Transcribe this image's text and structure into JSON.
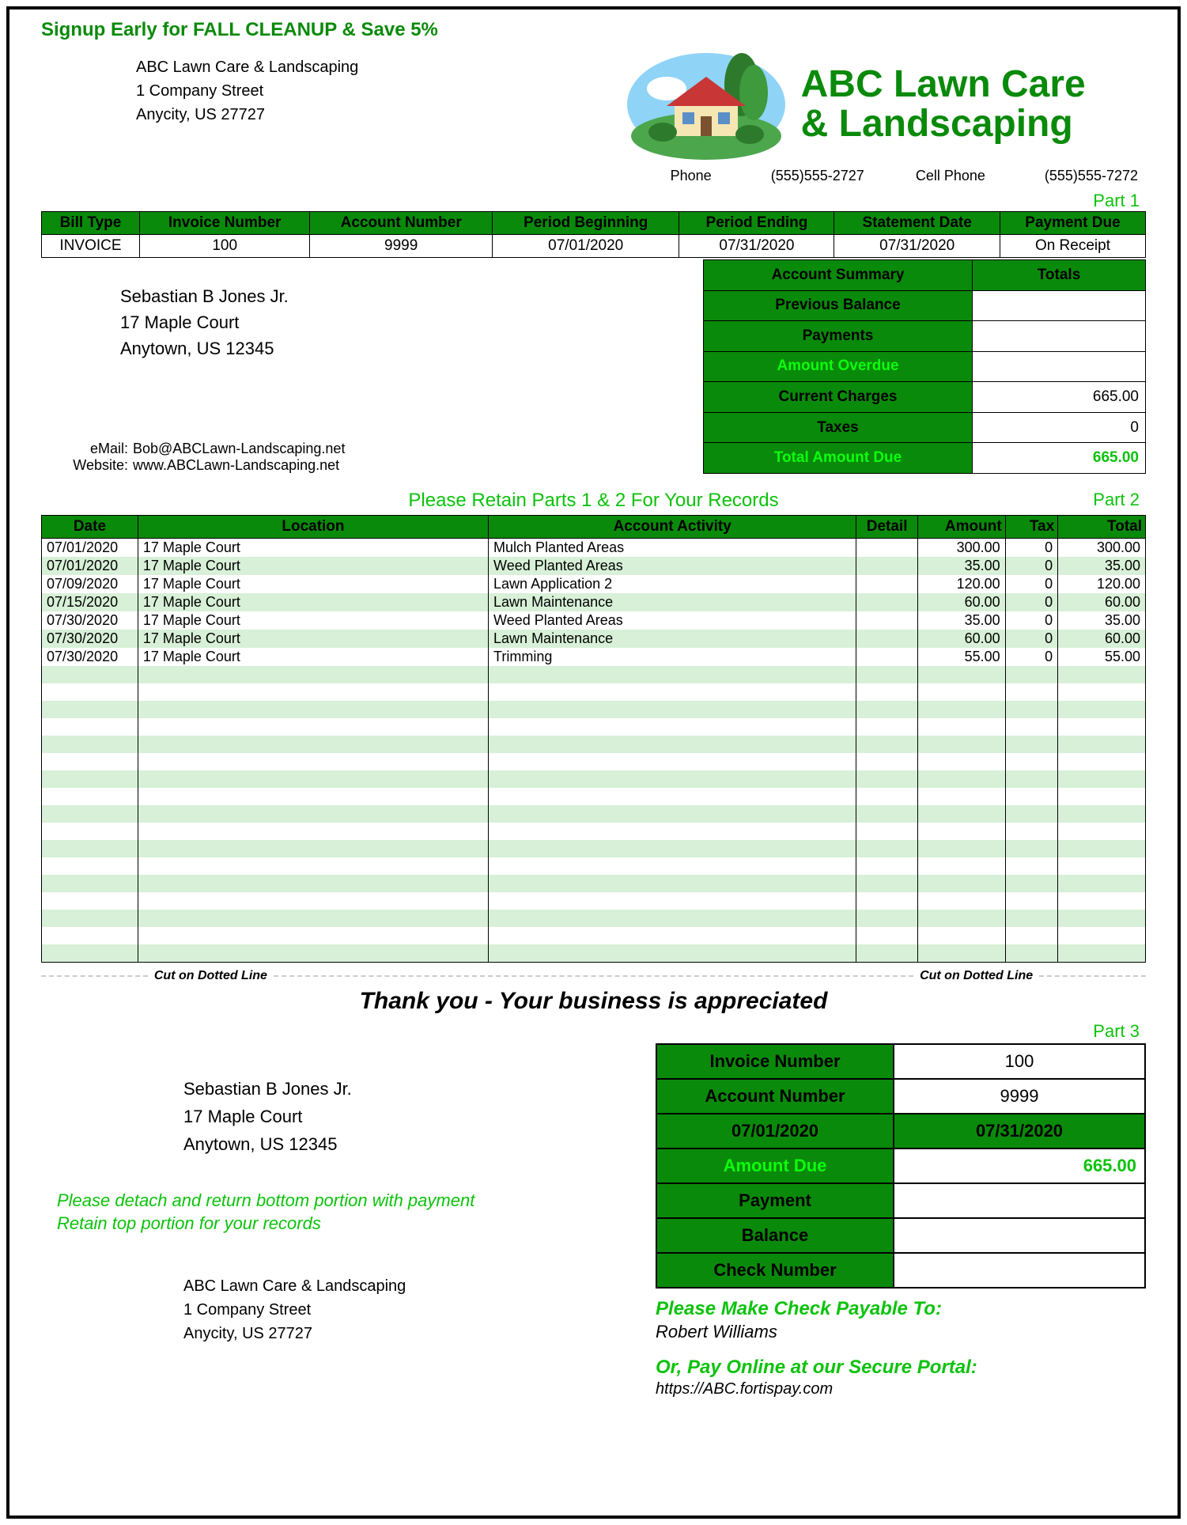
{
  "promo": "Signup Early for FALL CLEANUP & Save 5%",
  "company": {
    "name": "ABC Lawn Care & Landscaping",
    "street": "1 Company Street",
    "citystate": "Anycity, US   27727",
    "logo_line1": "ABC Lawn Care",
    "logo_line2": "& Landscaping"
  },
  "phones": {
    "phone_label": "Phone",
    "phone": "(555)555-2727",
    "cell_label": "Cell Phone",
    "cell": "(555)555-7272"
  },
  "part1_label": "Part 1",
  "info_headers": [
    "Bill Type",
    "Invoice Number",
    "Account Number",
    "Period Beginning",
    "Period Ending",
    "Statement Date",
    "Payment Due"
  ],
  "info_values": [
    "INVOICE",
    "100",
    "9999",
    "07/01/2020",
    "07/31/2020",
    "07/31/2020",
    "On Receipt"
  ],
  "customer": {
    "name": "Sebastian B Jones Jr.",
    "street": "17 Maple Court",
    "citystate": "Anytown, US  12345"
  },
  "contact": {
    "email_label": "eMail:",
    "email": "Bob@ABCLawn-Landscaping.net",
    "web_label": "Website:",
    "web": "www.ABCLawn-Landscaping.net"
  },
  "summary": {
    "head_label": "Account Summary",
    "head_totals": "Totals",
    "rows": [
      {
        "label": "Previous Balance",
        "value": "",
        "bright": false
      },
      {
        "label": "Payments",
        "value": "",
        "bright": false
      },
      {
        "label": "Amount Overdue",
        "value": "",
        "bright": true
      },
      {
        "label": "Current Charges",
        "value": "665.00",
        "bright": false
      },
      {
        "label": "Taxes",
        "value": "0",
        "bright": false
      }
    ],
    "total_label": "Total Amount Due",
    "total_value": "665.00"
  },
  "retain_text": "Please Retain Parts 1 & 2 For Your Records",
  "part2_label": "Part 2",
  "activity_headers": [
    "Date",
    "Location",
    "Account Activity",
    "Detail",
    "Amount",
    "Tax",
    "Total"
  ],
  "activity_rows": [
    {
      "date": "07/01/2020",
      "loc": "17 Maple Court",
      "act": "Mulch Planted Areas",
      "det": "",
      "amt": "300.00",
      "tax": "0",
      "tot": "300.00"
    },
    {
      "date": "07/01/2020",
      "loc": "17 Maple Court",
      "act": "Weed Planted Areas",
      "det": "",
      "amt": "35.00",
      "tax": "0",
      "tot": "35.00"
    },
    {
      "date": "07/09/2020",
      "loc": "17 Maple Court",
      "act": "Lawn Application 2",
      "det": "",
      "amt": "120.00",
      "tax": "0",
      "tot": "120.00"
    },
    {
      "date": "07/15/2020",
      "loc": "17 Maple Court",
      "act": "Lawn Maintenance",
      "det": "",
      "amt": "60.00",
      "tax": "0",
      "tot": "60.00"
    },
    {
      "date": "07/30/2020",
      "loc": "17 Maple Court",
      "act": "Weed Planted Areas",
      "det": "",
      "amt": "35.00",
      "tax": "0",
      "tot": "35.00"
    },
    {
      "date": "07/30/2020",
      "loc": "17 Maple Court",
      "act": "Lawn Maintenance",
      "det": "",
      "amt": "60.00",
      "tax": "0",
      "tot": "60.00"
    },
    {
      "date": "07/30/2020",
      "loc": "17 Maple Court",
      "act": "Trimming",
      "det": "",
      "amt": "55.00",
      "tax": "0",
      "tot": "55.00"
    }
  ],
  "blank_rows": 17,
  "cut_text": "Cut on Dotted Line",
  "thankyou": "Thank you - Your business is appreciated",
  "part3_label": "Part 3",
  "detach1": "Please detach and return bottom portion with payment",
  "detach2": "Retain top portion for your records",
  "p3": {
    "inv_label": "Invoice Number",
    "inv": "100",
    "acct_label": "Account Number",
    "acct": "9999",
    "begin": "07/01/2020",
    "end": "07/31/2020",
    "due_label": "Amount Due",
    "due": "665.00",
    "payment_label": "Payment",
    "balance_label": "Balance",
    "check_label": "Check Number"
  },
  "payable_label": "Please Make Check Payable To:",
  "payee": "Robert Williams",
  "portal_label": "Or, Pay Online at our Secure Portal:",
  "portal_url": "https://ABC.fortispay.com",
  "colors": {
    "header_green": "#0a8a0a",
    "bright_green": "#0cff0c",
    "text_green": "#0cc20c",
    "alt_row": "#d7f0d7"
  }
}
